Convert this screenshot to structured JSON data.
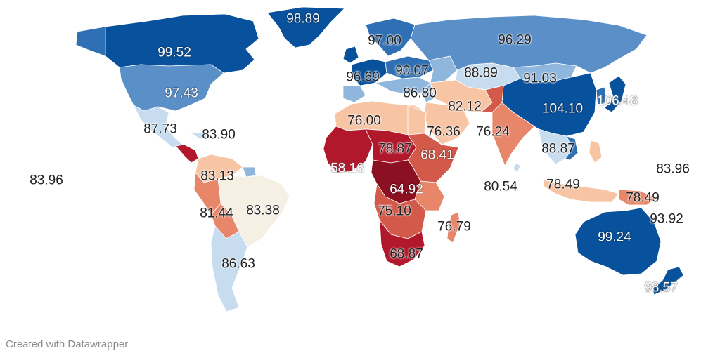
{
  "map": {
    "colors": {
      "very_high": "#08519c",
      "high": "#2f6fb3",
      "mid_high": "#5b8fc8",
      "mid": "#8fb6dd",
      "light": "#c7dcef",
      "neutral": "#f6efe3",
      "warm_light": "#f7c4a4",
      "warm": "#e8866a",
      "warm_mid": "#d35a4a",
      "low": "#b2182b",
      "very_low": "#8b1021"
    },
    "labels": [
      {
        "id": "greenland",
        "value": "98.89",
        "style": "light"
      },
      {
        "id": "canada",
        "value": "99.52",
        "style": "light"
      },
      {
        "id": "usa",
        "value": "97.43",
        "style": "light"
      },
      {
        "id": "mexico",
        "value": "87.73",
        "style": "halo"
      },
      {
        "id": "caribbean",
        "value": "83.90",
        "style": "halo"
      },
      {
        "id": "pacific",
        "value": "83.96",
        "style": "halo"
      },
      {
        "id": "northern-south-america",
        "value": "83.13",
        "style": "halo"
      },
      {
        "id": "brazil",
        "value": "83.38",
        "style": "halo"
      },
      {
        "id": "bolivia",
        "value": "81.44",
        "style": "halo"
      },
      {
        "id": "argentina",
        "value": "86.63",
        "style": "halo"
      },
      {
        "id": "scandinavia",
        "value": "97.00",
        "style": "halo"
      },
      {
        "id": "western-europe",
        "value": "96.69",
        "style": "halo"
      },
      {
        "id": "central-europe",
        "value": "90.07",
        "style": "halo"
      },
      {
        "id": "southern-europe",
        "value": "86.80",
        "style": "halo"
      },
      {
        "id": "russia",
        "value": "96.29",
        "style": "halo"
      },
      {
        "id": "central-asia",
        "value": "88.89",
        "style": "halo"
      },
      {
        "id": "mongolia",
        "value": "91.03",
        "style": "halo"
      },
      {
        "id": "middle-east",
        "value": "82.12",
        "style": "halo"
      },
      {
        "id": "china",
        "value": "104.10",
        "style": "light"
      },
      {
        "id": "japan",
        "value": "106.48",
        "style": "outline"
      },
      {
        "id": "north-africa",
        "value": "76.00",
        "style": "halo"
      },
      {
        "id": "arabia",
        "value": "76.36",
        "style": "halo"
      },
      {
        "id": "india",
        "value": "76.24",
        "style": "halo"
      },
      {
        "id": "southeast-asia",
        "value": "88.87",
        "style": "halo"
      },
      {
        "id": "sahel",
        "value": "78.87",
        "style": "halo"
      },
      {
        "id": "east-africa",
        "value": "68.41",
        "style": "light"
      },
      {
        "id": "west-africa",
        "value": "58.16",
        "style": "outline"
      },
      {
        "id": "central-africa",
        "value": "64.92",
        "style": "light"
      },
      {
        "id": "southern-central-africa",
        "value": "75.10",
        "style": "halo"
      },
      {
        "id": "madagascar",
        "value": "76.79",
        "style": "halo"
      },
      {
        "id": "south-africa",
        "value": "68.87",
        "style": "halo"
      },
      {
        "id": "indian-ocean",
        "value": "80.54",
        "style": "halo"
      },
      {
        "id": "indonesia",
        "value": "78.49",
        "style": "halo"
      },
      {
        "id": "papua",
        "value": "78.49",
        "style": "halo"
      },
      {
        "id": "western-pacific",
        "value": "83.96",
        "style": "halo"
      },
      {
        "id": "pacific-islands",
        "value": "93.92",
        "style": "halo"
      },
      {
        "id": "australia",
        "value": "99.24",
        "style": "light"
      },
      {
        "id": "new-zealand",
        "value": "98.57",
        "style": "outline"
      }
    ]
  },
  "footer": {
    "text": "Created with Datawrapper"
  }
}
